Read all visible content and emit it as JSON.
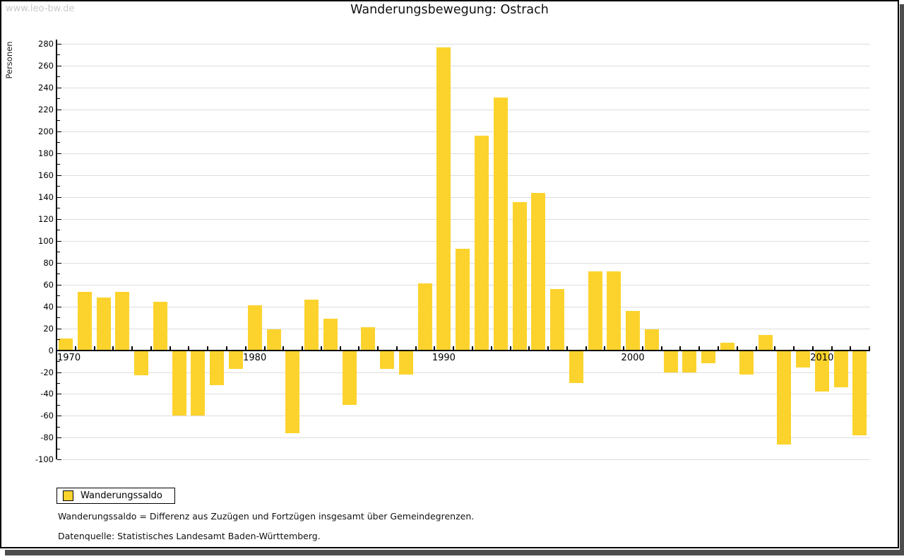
{
  "watermark": "www.leo-bw.de",
  "title": "Wanderungsbewegung: Ostrach",
  "y_axis_label": "Personen",
  "legend": {
    "label": "Wanderungssaldo",
    "swatch_color": "#fcd32d"
  },
  "footnotes": [
    "Wanderungssaldo = Differenz aus Zuzügen und Fortzügen insgesamt über Gemeindegrenzen.",
    "Datenquelle: Statistisches Landesamt Baden-Württemberg."
  ],
  "chart_data": {
    "type": "bar",
    "title": "Wanderungsbewegung: Ostrach",
    "xlabel": "",
    "ylabel": "Personen",
    "series_name": "Wanderungssaldo",
    "bar_color": "#fcd32d",
    "grid": true,
    "gridline_color": "#dddddd",
    "ylim": [
      -100,
      284
    ],
    "y_tick_step": 20,
    "y_minor_tick_step": 10,
    "x_tick_labels": [
      "1970",
      "1980",
      "1990",
      "2000",
      "2010"
    ],
    "years": [
      1970,
      1971,
      1972,
      1973,
      1974,
      1975,
      1976,
      1977,
      1978,
      1979,
      1980,
      1981,
      1982,
      1983,
      1984,
      1985,
      1986,
      1987,
      1988,
      1989,
      1990,
      1991,
      1992,
      1993,
      1994,
      1995,
      1996,
      1997,
      1998,
      1999,
      2000,
      2001,
      2002,
      2003,
      2004,
      2005,
      2006,
      2007,
      2008,
      2009,
      2010,
      2011,
      2012
    ],
    "values": [
      11,
      53,
      48,
      53,
      -23,
      44,
      -60,
      -60,
      -32,
      -17,
      41,
      19,
      -76,
      46,
      29,
      -50,
      21,
      -17,
      -22,
      61,
      277,
      93,
      196,
      231,
      135,
      144,
      56,
      -30,
      72,
      72,
      36,
      19,
      -20,
      -20,
      -12,
      7,
      -22,
      14,
      -86,
      -16,
      -38,
      -34,
      -78
    ]
  }
}
